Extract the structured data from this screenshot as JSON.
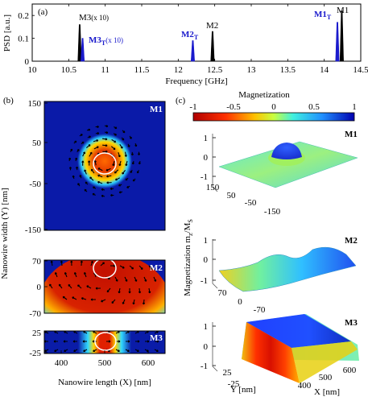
{
  "panel_a": {
    "label": "(a)",
    "ylabel": "PSD [a.u.]",
    "xlabel": "Frequency [GHz]",
    "xticks": [
      "10",
      "10.5",
      "11",
      "11.5",
      "12",
      "12.5",
      "13",
      "13.5",
      "14",
      "14.5"
    ],
    "yticks": [
      "0",
      "0.1",
      "0.2"
    ],
    "peak_labels": {
      "m3": "M3",
      "m3_note": "(x 10)",
      "m3t": "M3",
      "m3t_sub": "T",
      "m3t_note": "(x 10)",
      "m2t": "M2",
      "m2t_sub": "T",
      "m2": "M2",
      "m1t": "M1",
      "m1t_sub": "T",
      "m1": "M1"
    },
    "colors": {
      "mode": "#000000",
      "mode_t": "#1a1acc"
    }
  },
  "panel_b": {
    "label": "(b)",
    "ylabel": "Nanowire width (Y) [nm]",
    "xlabel": "Nanowire length (X) [nm]",
    "m1": {
      "label": "M1",
      "yticks": [
        "150",
        "50",
        "-50",
        "-150"
      ]
    },
    "m2": {
      "label": "M2",
      "yticks": [
        "70",
        "0",
        "-70"
      ]
    },
    "m3": {
      "label": "M3",
      "yticks": [
        "25",
        "-25"
      ]
    },
    "xticks": [
      "400",
      "500",
      "600"
    ]
  },
  "panel_c": {
    "label": "(c)",
    "colorbar_title": "Magnetization",
    "colorbar_ticks": [
      "-1",
      "-0.5",
      "0",
      "0.5",
      "1"
    ],
    "zlabel": "Magnetization m",
    "zlabel_sub": "z",
    "zlabel_tail": "/M",
    "zlabel_tail_sub": "S",
    "m1": {
      "label": "M1",
      "zticks": [
        "1",
        "0",
        "-1"
      ],
      "yticks": [
        "150",
        "50",
        "-50",
        "-150"
      ]
    },
    "m2": {
      "label": "M2",
      "zticks": [
        "1",
        "0",
        "-1"
      ],
      "yticks": [
        "70",
        "0",
        "-70"
      ]
    },
    "m3": {
      "label": "M3",
      "zticks": [
        "1",
        "0",
        "-1"
      ],
      "yticks": [
        "25",
        "-25"
      ],
      "xticks": [
        "400",
        "500",
        "600"
      ]
    },
    "yaxis_label": "Y [nm]",
    "xaxis_label": "X [nm]"
  },
  "chart_data": {
    "type": "line",
    "title": "",
    "xlabel": "Frequency [GHz]",
    "ylabel": "PSD [a.u.]",
    "xlim": [
      10,
      14.5
    ],
    "ylim": [
      0,
      0.25
    ],
    "series": [
      {
        "name": "M3 (x 10)",
        "x": [
          10.65
        ],
        "y": [
          0.16
        ]
      },
      {
        "name": "M3T (x 10)",
        "x": [
          10.69
        ],
        "y": [
          0.1
        ]
      },
      {
        "name": "M2T",
        "x": [
          12.2
        ],
        "y": [
          0.09
        ]
      },
      {
        "name": "M2",
        "x": [
          12.47
        ],
        "y": [
          0.13
        ]
      },
      {
        "name": "M1T",
        "x": [
          14.18
        ],
        "y": [
          0.17
        ]
      },
      {
        "name": "M1",
        "x": [
          14.24
        ],
        "y": [
          0.22
        ]
      }
    ]
  }
}
